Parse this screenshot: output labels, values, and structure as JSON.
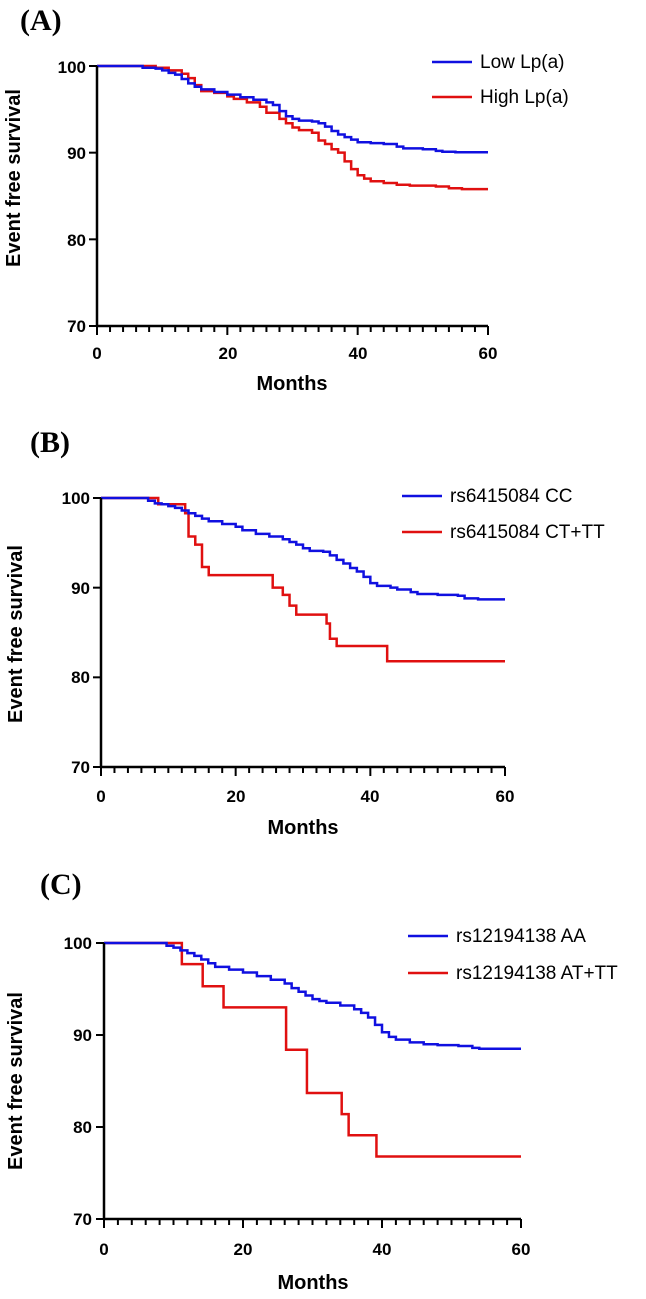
{
  "chart_data": [
    {
      "type": "line",
      "panel_label": "(A)",
      "title": "",
      "xlabel": "Months",
      "ylabel": "Event free survival",
      "xlim": [
        0,
        60
      ],
      "ylim": [
        70,
        100
      ],
      "xticks": [
        "0",
        "20",
        "40",
        "60"
      ],
      "yticks": [
        "70",
        "80",
        "90",
        "100"
      ],
      "legend_position": "top-right",
      "series": [
        {
          "name": "Low Lp(a)",
          "color": "#1010e0",
          "points": [
            [
              0,
              100
            ],
            [
              6,
              100
            ],
            [
              7,
              99.8
            ],
            [
              9,
              99.7
            ],
            [
              10,
              99.5
            ],
            [
              11,
              99.2
            ],
            [
              12,
              99
            ],
            [
              13,
              98.5
            ],
            [
              14,
              98
            ],
            [
              15,
              97.6
            ],
            [
              16,
              97.3
            ],
            [
              18,
              97
            ],
            [
              20,
              96.7
            ],
            [
              22,
              96.4
            ],
            [
              24,
              96.1
            ],
            [
              26,
              95.8
            ],
            [
              27,
              95.5
            ],
            [
              28,
              94.8
            ],
            [
              29,
              94.2
            ],
            [
              30,
              93.9
            ],
            [
              31,
              93.7
            ],
            [
              33,
              93.6
            ],
            [
              34,
              93.4
            ],
            [
              35,
              93
            ],
            [
              36,
              92.5
            ],
            [
              37,
              92.1
            ],
            [
              38,
              91.8
            ],
            [
              39,
              91.5
            ],
            [
              40,
              91.2
            ],
            [
              42,
              91.1
            ],
            [
              44,
              91
            ],
            [
              46,
              90.7
            ],
            [
              47,
              90.5
            ],
            [
              50,
              90.4
            ],
            [
              52,
              90.2
            ],
            [
              53,
              90.1
            ],
            [
              55,
              90.05
            ],
            [
              60,
              90.05
            ]
          ]
        },
        {
          "name": "High Lp(a)",
          "color": "#e01010",
          "points": [
            [
              0,
              100
            ],
            [
              8,
              100
            ],
            [
              9,
              99.8
            ],
            [
              11,
              99.5
            ],
            [
              13,
              99.1
            ],
            [
              14,
              98.6
            ],
            [
              15,
              97.8
            ],
            [
              16,
              97.1
            ],
            [
              18,
              96.9
            ],
            [
              20,
              96.5
            ],
            [
              21,
              96.2
            ],
            [
              23,
              95.8
            ],
            [
              25,
              95.3
            ],
            [
              26,
              94.6
            ],
            [
              28,
              93.9
            ],
            [
              29,
              93.4
            ],
            [
              30,
              92.9
            ],
            [
              31,
              92.6
            ],
            [
              33,
              92.3
            ],
            [
              34,
              91.4
            ],
            [
              35,
              91
            ],
            [
              36,
              90.4
            ],
            [
              37,
              90
            ],
            [
              38,
              89
            ],
            [
              39,
              88.1
            ],
            [
              40,
              87.4
            ],
            [
              41,
              87
            ],
            [
              42,
              86.7
            ],
            [
              44,
              86.5
            ],
            [
              46,
              86.3
            ],
            [
              48,
              86.2
            ],
            [
              52,
              86.1
            ],
            [
              54,
              85.9
            ],
            [
              56,
              85.8
            ],
            [
              60,
              85.8
            ]
          ]
        }
      ]
    },
    {
      "type": "line",
      "panel_label": "(B)",
      "title": "",
      "xlabel": "Months",
      "ylabel": "Event free survival",
      "xlim": [
        0,
        60
      ],
      "ylim": [
        70,
        100
      ],
      "xticks": [
        "0",
        "20",
        "40",
        "60"
      ],
      "yticks": [
        "70",
        "80",
        "90",
        "100"
      ],
      "legend_position": "top-right",
      "series": [
        {
          "name": "rs6415084 CC",
          "color": "#1010e0",
          "points": [
            [
              0,
              100
            ],
            [
              6,
              100
            ],
            [
              7,
              99.7
            ],
            [
              8,
              99.4
            ],
            [
              9,
              99.3
            ],
            [
              10,
              99.1
            ],
            [
              11,
              98.9
            ],
            [
              12,
              98.6
            ],
            [
              13,
              98.3
            ],
            [
              14,
              98
            ],
            [
              15,
              97.7
            ],
            [
              16,
              97.4
            ],
            [
              18,
              97.1
            ],
            [
              20,
              96.8
            ],
            [
              21,
              96.4
            ],
            [
              23,
              96
            ],
            [
              25,
              95.7
            ],
            [
              27,
              95.4
            ],
            [
              28,
              95.1
            ],
            [
              29,
              94.8
            ],
            [
              30,
              94.4
            ],
            [
              31,
              94.1
            ],
            [
              33,
              94
            ],
            [
              34,
              93.6
            ],
            [
              35,
              93.1
            ],
            [
              36,
              92.7
            ],
            [
              37,
              92.2
            ],
            [
              38,
              91.8
            ],
            [
              39,
              91.2
            ],
            [
              40,
              90.5
            ],
            [
              41,
              90.2
            ],
            [
              43,
              90
            ],
            [
              44,
              89.8
            ],
            [
              46,
              89.5
            ],
            [
              47,
              89.3
            ],
            [
              50,
              89.2
            ],
            [
              53,
              89.1
            ],
            [
              54,
              88.8
            ],
            [
              56,
              88.7
            ],
            [
              60,
              88.7
            ]
          ]
        },
        {
          "name": "rs6415084 CT+TT",
          "color": "#e01010",
          "points": [
            [
              0,
              100
            ],
            [
              8,
              100
            ],
            [
              8.5,
              99.3
            ],
            [
              12,
              99.3
            ],
            [
              12.5,
              98.3
            ],
            [
              13,
              95.7
            ],
            [
              14,
              94.8
            ],
            [
              15,
              92.3
            ],
            [
              16,
              91.4
            ],
            [
              25,
              91.4
            ],
            [
              25.5,
              90
            ],
            [
              27,
              89.2
            ],
            [
              28,
              88
            ],
            [
              29,
              87
            ],
            [
              33,
              87
            ],
            [
              33.5,
              86
            ],
            [
              34,
              84.3
            ],
            [
              35,
              83.5
            ],
            [
              42,
              83.5
            ],
            [
              42.5,
              81.8
            ],
            [
              60,
              81.8
            ]
          ]
        }
      ]
    },
    {
      "type": "line",
      "panel_label": "(C)",
      "title": "",
      "xlabel": "Months",
      "ylabel": "Event free survival",
      "xlim": [
        0,
        60
      ],
      "ylim": [
        70,
        100
      ],
      "xticks": [
        "0",
        "20",
        "40",
        "60"
      ],
      "yticks": [
        "70",
        "80",
        "90",
        "100"
      ],
      "legend_position": "top-right",
      "series": [
        {
          "name": "rs12194138 AA",
          "color": "#1010e0",
          "points": [
            [
              0,
              100
            ],
            [
              8,
              100
            ],
            [
              9,
              99.7
            ],
            [
              10,
              99.5
            ],
            [
              11,
              99.2
            ],
            [
              12,
              98.9
            ],
            [
              13,
              98.6
            ],
            [
              14,
              98.2
            ],
            [
              15,
              97.8
            ],
            [
              16,
              97.4
            ],
            [
              18,
              97.1
            ],
            [
              20,
              96.8
            ],
            [
              22,
              96.4
            ],
            [
              24,
              96
            ],
            [
              26,
              95.6
            ],
            [
              27,
              95.1
            ],
            [
              28,
              94.7
            ],
            [
              29,
              94.3
            ],
            [
              30,
              93.9
            ],
            [
              31,
              93.7
            ],
            [
              32,
              93.5
            ],
            [
              34,
              93.2
            ],
            [
              36,
              92.8
            ],
            [
              37,
              92.4
            ],
            [
              38,
              91.9
            ],
            [
              39,
              91.1
            ],
            [
              40,
              90.3
            ],
            [
              41,
              89.8
            ],
            [
              42,
              89.5
            ],
            [
              44,
              89.2
            ],
            [
              46,
              89
            ],
            [
              48,
              88.9
            ],
            [
              51,
              88.8
            ],
            [
              53,
              88.6
            ],
            [
              54,
              88.5
            ],
            [
              60,
              88.5
            ]
          ]
        },
        {
          "name": "rs12194138 AT+TT",
          "color": "#e01010",
          "points": [
            [
              0,
              100
            ],
            [
              11,
              100
            ],
            [
              11.2,
              97.7
            ],
            [
              14,
              97.7
            ],
            [
              14.2,
              95.3
            ],
            [
              17,
              95.3
            ],
            [
              17.2,
              93
            ],
            [
              26,
              93
            ],
            [
              26.2,
              88.4
            ],
            [
              29,
              88.4
            ],
            [
              29.2,
              83.7
            ],
            [
              34,
              83.7
            ],
            [
              34.2,
              81.4
            ],
            [
              35,
              81.4
            ],
            [
              35.2,
              79.1
            ],
            [
              39,
              79.1
            ],
            [
              39.2,
              76.8
            ],
            [
              60,
              76.8
            ]
          ]
        }
      ]
    }
  ]
}
